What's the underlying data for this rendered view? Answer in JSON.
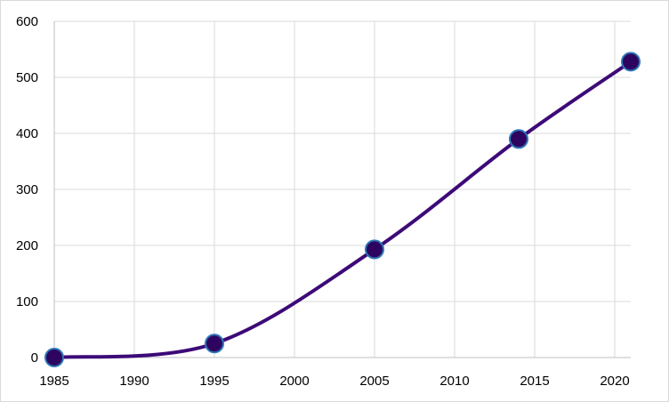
{
  "chart_data": {
    "type": "line",
    "title": "",
    "xlabel": "",
    "ylabel": "",
    "xlim": [
      1985,
      2021
    ],
    "ylim": [
      0,
      600
    ],
    "x_ticks": [
      "1985",
      "1990",
      "1995",
      "2000",
      "2005",
      "2010",
      "2015",
      "2020"
    ],
    "y_ticks": [
      "0",
      "100",
      "200",
      "300",
      "400",
      "500",
      "600"
    ],
    "grid": true,
    "legend": "none",
    "smooth": true,
    "series": [
      {
        "x": [
          1985,
          1995,
          2005,
          2014,
          2021
        ],
        "y": [
          0,
          25,
          193,
          390,
          528
        ],
        "color": "#3d0a78",
        "marker_fill": "#2d0560",
        "marker_edge": "#2e75b6"
      }
    ],
    "colors": {
      "grid": "#d9d9d9",
      "axis": "#bfbfbf"
    }
  }
}
